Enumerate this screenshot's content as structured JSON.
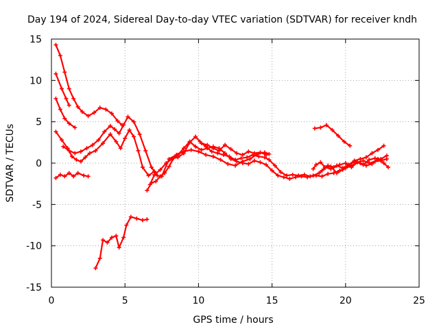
{
  "chart_data": {
    "type": "line",
    "title": "Day 194 of 2024, Sidereal Day-to-day VTEC variation (SDTVAR) for receiver kndh",
    "xlabel": "GPS time / hours",
    "ylabel": "SDTVAR / TECUs",
    "xlim": [
      0,
      25
    ],
    "ylim": [
      -15,
      15
    ],
    "xticks": [
      0,
      5,
      10,
      15,
      20,
      25
    ],
    "yticks": [
      -15,
      -10,
      -5,
      0,
      5,
      10,
      15
    ],
    "grid": true,
    "series_color": "#ff0000",
    "series": [
      {
        "name": "track-1",
        "points": [
          [
            0.3,
            14.3
          ],
          [
            0.6,
            13.0
          ],
          [
            0.9,
            11.0
          ],
          [
            1.2,
            9.0
          ],
          [
            1.5,
            7.8
          ],
          [
            1.8,
            6.8
          ],
          [
            2.1,
            6.2
          ],
          [
            2.5,
            5.7
          ],
          [
            2.9,
            6.1
          ],
          [
            3.3,
            6.7
          ],
          [
            3.7,
            6.5
          ],
          [
            4.1,
            6.0
          ],
          [
            4.5,
            5.1
          ],
          [
            4.8,
            4.6
          ]
        ]
      },
      {
        "name": "track-2",
        "points": [
          [
            0.3,
            10.8
          ],
          [
            0.7,
            9.0
          ],
          [
            1.0,
            7.8
          ],
          [
            1.2,
            7.0
          ]
        ]
      },
      {
        "name": "track-3",
        "points": [
          [
            0.3,
            7.8
          ],
          [
            0.6,
            6.5
          ],
          [
            0.9,
            5.4
          ],
          [
            1.2,
            4.8
          ],
          [
            1.6,
            4.3
          ]
        ]
      },
      {
        "name": "track-4",
        "points": [
          [
            0.3,
            3.8
          ],
          [
            0.7,
            2.8
          ],
          [
            1.1,
            1.8
          ],
          [
            1.4,
            0.8
          ],
          [
            1.7,
            0.4
          ],
          [
            2.0,
            0.2
          ],
          [
            2.3,
            0.7
          ],
          [
            2.6,
            1.2
          ],
          [
            3.0,
            1.5
          ],
          [
            3.5,
            2.4
          ],
          [
            4.0,
            3.5
          ],
          [
            4.4,
            2.6
          ],
          [
            4.7,
            1.8
          ],
          [
            5.0,
            3.0
          ],
          [
            5.3,
            4.0
          ],
          [
            5.6,
            3.2
          ],
          [
            5.9,
            1.5
          ],
          [
            6.2,
            -0.5
          ],
          [
            6.6,
            -1.5
          ],
          [
            7.0,
            -1.0
          ]
        ]
      },
      {
        "name": "track-5",
        "points": [
          [
            0.8,
            2.0
          ],
          [
            1.2,
            1.5
          ],
          [
            1.6,
            1.2
          ],
          [
            2.0,
            1.4
          ],
          [
            2.4,
            1.8
          ],
          [
            2.8,
            2.2
          ],
          [
            3.2,
            2.8
          ],
          [
            3.6,
            3.8
          ],
          [
            4.0,
            4.5
          ],
          [
            4.3,
            4.1
          ],
          [
            4.6,
            3.6
          ],
          [
            4.9,
            4.6
          ],
          [
            5.2,
            5.6
          ],
          [
            5.6,
            5.0
          ],
          [
            6.0,
            3.5
          ],
          [
            6.4,
            1.5
          ],
          [
            6.8,
            -0.5
          ],
          [
            7.2,
            -1.5
          ]
        ]
      },
      {
        "name": "track-6",
        "points": [
          [
            0.3,
            -1.8
          ],
          [
            0.6,
            -1.4
          ],
          [
            0.9,
            -1.6
          ],
          [
            1.2,
            -1.2
          ],
          [
            1.5,
            -1.6
          ],
          [
            1.8,
            -1.2
          ],
          [
            2.2,
            -1.5
          ],
          [
            2.5,
            -1.6
          ]
        ]
      },
      {
        "name": "track-7",
        "points": [
          [
            3.0,
            -12.7
          ],
          [
            3.3,
            -11.5
          ],
          [
            3.5,
            -9.3
          ],
          [
            3.8,
            -9.6
          ],
          [
            4.1,
            -9.0
          ],
          [
            4.4,
            -8.8
          ],
          [
            4.6,
            -10.2
          ],
          [
            4.9,
            -9.0
          ],
          [
            5.1,
            -7.5
          ],
          [
            5.4,
            -6.5
          ],
          [
            5.8,
            -6.7
          ],
          [
            6.2,
            -6.9
          ],
          [
            6.5,
            -6.8
          ]
        ]
      },
      {
        "name": "track-8",
        "points": [
          [
            6.5,
            -3.3
          ],
          [
            6.8,
            -2.4
          ],
          [
            7.1,
            -2.2
          ],
          [
            7.4,
            -1.6
          ],
          [
            7.7,
            -1.2
          ],
          [
            8.0,
            -0.4
          ],
          [
            8.3,
            0.6
          ],
          [
            8.6,
            0.7
          ],
          [
            9.0,
            1.2
          ],
          [
            9.4,
            2.5
          ],
          [
            9.8,
            3.2
          ],
          [
            10.1,
            2.6
          ],
          [
            10.5,
            2.0
          ],
          [
            10.9,
            1.4
          ],
          [
            11.3,
            1.2
          ],
          [
            11.7,
            1.0
          ],
          [
            12.1,
            0.8
          ],
          [
            12.5,
            0.4
          ],
          [
            12.9,
            0.6
          ],
          [
            13.3,
            0.7
          ],
          [
            13.7,
            1.0
          ],
          [
            14.1,
            0.8
          ],
          [
            14.5,
            0.7
          ],
          [
            14.8,
            0.4
          ],
          [
            15.2,
            -0.3
          ],
          [
            15.6,
            -1.1
          ],
          [
            16.0,
            -1.5
          ],
          [
            16.4,
            -1.4
          ],
          [
            16.8,
            -1.5
          ],
          [
            17.2,
            -1.4
          ],
          [
            17.6,
            -1.6
          ],
          [
            18.0,
            -1.5
          ],
          [
            18.4,
            -1.6
          ],
          [
            18.8,
            -1.3
          ],
          [
            19.2,
            -1.2
          ],
          [
            19.6,
            -0.9
          ],
          [
            20.0,
            -0.6
          ],
          [
            20.4,
            -0.3
          ],
          [
            20.8,
            0.1
          ],
          [
            21.2,
            0.3
          ],
          [
            21.6,
            0.0
          ],
          [
            22.0,
            0.2
          ],
          [
            22.4,
            0.3
          ],
          [
            22.8,
            0.5
          ]
        ]
      },
      {
        "name": "track-9",
        "points": [
          [
            6.7,
            -2.6
          ],
          [
            7.0,
            -1.4
          ],
          [
            7.4,
            -0.8
          ],
          [
            7.8,
            0.0
          ],
          [
            8.2,
            0.5
          ],
          [
            8.6,
            1.0
          ],
          [
            9.0,
            1.8
          ],
          [
            9.4,
            2.6
          ],
          [
            9.8,
            2.0
          ],
          [
            10.2,
            1.6
          ],
          [
            10.6,
            1.8
          ],
          [
            11.0,
            2.0
          ],
          [
            11.4,
            1.8
          ],
          [
            11.8,
            1.2
          ],
          [
            12.2,
            0.5
          ],
          [
            12.6,
            0.2
          ],
          [
            13.0,
            0.0
          ],
          [
            13.4,
            -0.1
          ],
          [
            13.8,
            0.3
          ],
          [
            14.2,
            0.1
          ],
          [
            14.6,
            -0.2
          ],
          [
            15.0,
            -0.9
          ],
          [
            15.4,
            -1.5
          ],
          [
            15.8,
            -1.7
          ],
          [
            16.2,
            -1.9
          ],
          [
            16.6,
            -1.7
          ],
          [
            17.0,
            -1.6
          ],
          [
            17.4,
            -1.7
          ],
          [
            17.8,
            -1.5
          ],
          [
            18.2,
            -1.2
          ],
          [
            18.6,
            -0.6
          ],
          [
            19.0,
            -0.4
          ],
          [
            19.4,
            -1.2
          ],
          [
            19.8,
            -0.8
          ],
          [
            20.2,
            -0.3
          ],
          [
            20.6,
            0.2
          ],
          [
            21.0,
            0.0
          ],
          [
            21.4,
            -0.3
          ],
          [
            21.8,
            -0.1
          ],
          [
            22.2,
            0.5
          ],
          [
            22.6,
            0.0
          ],
          [
            22.9,
            -0.5
          ]
        ]
      },
      {
        "name": "track-10",
        "points": [
          [
            7.5,
            -1.6
          ],
          [
            8.0,
            0.5
          ],
          [
            8.5,
            1.0
          ],
          [
            9.0,
            1.4
          ],
          [
            9.5,
            1.6
          ],
          [
            10.0,
            1.4
          ],
          [
            10.5,
            1.0
          ],
          [
            11.0,
            0.8
          ],
          [
            11.5,
            0.4
          ],
          [
            12.0,
            -0.1
          ],
          [
            12.5,
            -0.3
          ],
          [
            13.0,
            0.2
          ],
          [
            13.5,
            0.5
          ],
          [
            14.0,
            1.1
          ],
          [
            14.5,
            1.3
          ],
          [
            14.8,
            1.1
          ]
        ]
      },
      {
        "name": "track-11",
        "points": [
          [
            10.2,
            2.4
          ],
          [
            10.6,
            2.2
          ],
          [
            11.0,
            1.8
          ],
          [
            11.4,
            1.5
          ],
          [
            11.8,
            2.2
          ],
          [
            12.2,
            1.7
          ],
          [
            12.6,
            1.2
          ],
          [
            13.0,
            1.0
          ],
          [
            13.4,
            1.4
          ],
          [
            13.8,
            1.2
          ],
          [
            14.2,
            1.3
          ],
          [
            14.6,
            1.0
          ]
        ]
      },
      {
        "name": "track-12",
        "points": [
          [
            17.9,
            4.2
          ],
          [
            18.3,
            4.3
          ],
          [
            18.7,
            4.6
          ],
          [
            19.1,
            4.0
          ],
          [
            19.5,
            3.3
          ],
          [
            19.9,
            2.6
          ],
          [
            20.3,
            2.1
          ]
        ]
      },
      {
        "name": "track-13",
        "points": [
          [
            17.8,
            -0.7
          ],
          [
            18.0,
            -0.2
          ],
          [
            18.3,
            0.1
          ],
          [
            18.6,
            -0.5
          ],
          [
            19.0,
            -0.7
          ],
          [
            19.4,
            -0.3
          ],
          [
            19.8,
            -0.6
          ],
          [
            20.2,
            -0.2
          ],
          [
            20.6,
            0.3
          ],
          [
            21.0,
            0.5
          ],
          [
            21.4,
            0.7
          ],
          [
            21.8,
            1.2
          ],
          [
            22.2,
            1.6
          ],
          [
            22.6,
            2.1
          ]
        ]
      },
      {
        "name": "track-14",
        "points": [
          [
            18.4,
            -0.9
          ],
          [
            18.8,
            -0.3
          ],
          [
            19.2,
            -0.5
          ],
          [
            19.6,
            -0.2
          ],
          [
            20.0,
            0.0
          ],
          [
            20.4,
            -0.5
          ],
          [
            20.8,
            0.1
          ],
          [
            21.2,
            -0.2
          ],
          [
            21.6,
            0.4
          ],
          [
            22.0,
            0.6
          ],
          [
            22.4,
            0.5
          ],
          [
            22.8,
            0.9
          ]
        ]
      }
    ]
  }
}
